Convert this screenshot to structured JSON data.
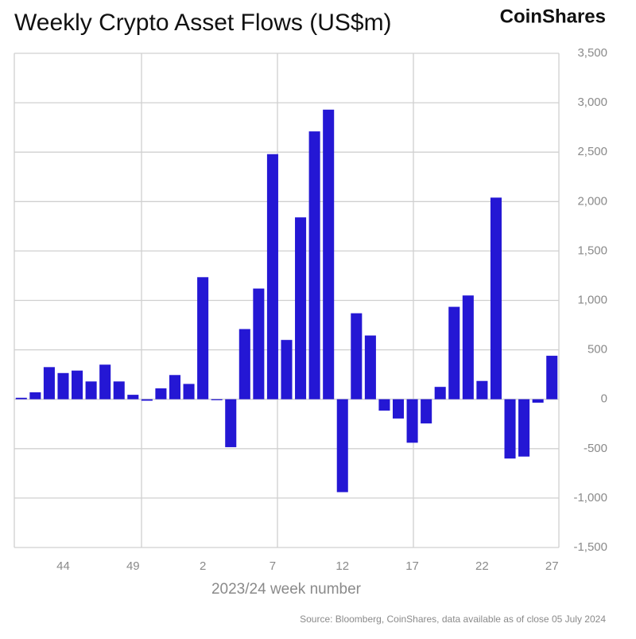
{
  "chart_data": {
    "type": "bar",
    "title": "Weekly Crypto Asset Flows (US$m)",
    "brand": "CoinShares",
    "x_label": "2023/24 week number",
    "source": "Source: Bloomberg, CoinShares, data available as of close 05 July 2024",
    "categories": [
      null,
      null,
      null,
      "44",
      null,
      null,
      null,
      null,
      "49",
      null,
      null,
      null,
      null,
      "2",
      null,
      null,
      null,
      null,
      "7",
      null,
      null,
      null,
      null,
      "12",
      null,
      null,
      null,
      null,
      "17",
      null,
      null,
      null,
      null,
      "22",
      null,
      null,
      null,
      null,
      "27"
    ],
    "values": [
      15,
      70,
      325,
      265,
      290,
      180,
      350,
      180,
      45,
      -15,
      110,
      245,
      155,
      1235,
      -10,
      -485,
      710,
      1120,
      2480,
      600,
      1840,
      2710,
      2930,
      -940,
      870,
      645,
      -115,
      -195,
      -440,
      -245,
      125,
      935,
      1050,
      185,
      2040,
      -600,
      -580,
      -35,
      440
    ],
    "color": "#2417d4",
    "ylim": [
      -1500,
      3500
    ],
    "yticks": [
      {
        "value": -1500,
        "label": "-1,500"
      },
      {
        "value": -1000,
        "label": "-1,000"
      },
      -500,
      0,
      500,
      {
        "value": 1000,
        "label": "1,000"
      },
      {
        "value": 1500,
        "label": "1,500"
      },
      {
        "value": 2000,
        "label": "2,000"
      },
      {
        "value": 2500,
        "label": "2,500"
      },
      {
        "value": 3000,
        "label": "3,000"
      },
      {
        "value": 3500,
        "label": "3,500"
      }
    ],
    "grid": true
  }
}
